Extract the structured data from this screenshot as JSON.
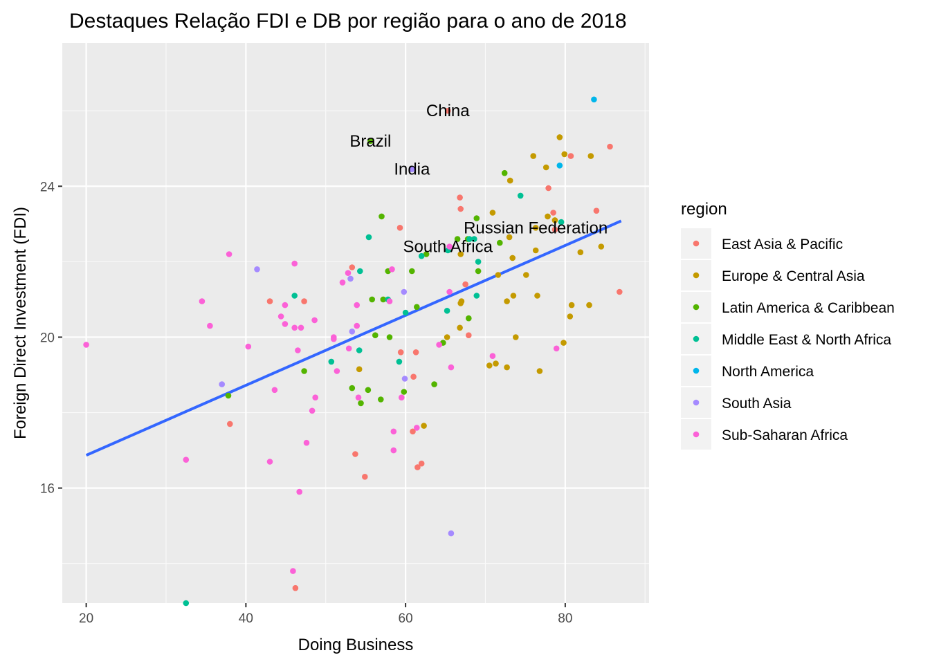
{
  "chart_data": {
    "type": "scatter",
    "title": "Destaques Relação FDI e DB por região para o ano de 2018",
    "xlabel": "Doing Business",
    "ylabel": "Foreign Direct Investment (FDI)",
    "xlim": [
      17,
      90.5
    ],
    "ylim": [
      12.95,
      27.8
    ],
    "x_ticks": [
      20,
      40,
      60,
      80
    ],
    "y_ticks": [
      16,
      20,
      24
    ],
    "x_minor": [
      30,
      50,
      70,
      90
    ],
    "y_minor": [
      14,
      18,
      22,
      26
    ],
    "grid": true,
    "panel_background": "#ebebeb",
    "legend": {
      "title": "region",
      "position": "right"
    },
    "trend_line": {
      "type": "linear fit",
      "color": "#3366ff",
      "x": [
        20,
        87
      ],
      "y": [
        16.87,
        23.08
      ]
    },
    "series": [
      {
        "name": "East Asia & Pacific",
        "color": "#f8766d",
        "points": [
          [
            65.3,
            26.0
          ],
          [
            66.8,
            23.7
          ],
          [
            66.9,
            23.4
          ],
          [
            59.3,
            22.9
          ],
          [
            53.3,
            21.85
          ],
          [
            43.0,
            20.95
          ],
          [
            47.3,
            20.95
          ],
          [
            59.4,
            19.6
          ],
          [
            61.3,
            19.6
          ],
          [
            61.0,
            18.95
          ],
          [
            60.9,
            17.5
          ],
          [
            61.5,
            16.55
          ],
          [
            62.0,
            16.65
          ],
          [
            53.7,
            16.9
          ],
          [
            54.9,
            16.3
          ],
          [
            38.0,
            17.7
          ],
          [
            46.2,
            13.35
          ],
          [
            67.5,
            21.4
          ],
          [
            67.9,
            20.05
          ],
          [
            85.6,
            25.05
          ],
          [
            80.7,
            24.8
          ],
          [
            77.9,
            23.95
          ],
          [
            78.5,
            23.3
          ],
          [
            83.9,
            23.35
          ],
          [
            78.7,
            22.85
          ],
          [
            86.8,
            21.2
          ]
        ]
      },
      {
        "name": "Europe & Central Asia",
        "color": "#c49a00",
        "points": [
          [
            79.3,
            25.3
          ],
          [
            79.9,
            24.85
          ],
          [
            83.2,
            24.8
          ],
          [
            76.0,
            24.8
          ],
          [
            77.6,
            24.5
          ],
          [
            73.1,
            24.15
          ],
          [
            70.9,
            23.3
          ],
          [
            77.8,
            23.2
          ],
          [
            78.7,
            23.1
          ],
          [
            76.3,
            22.9
          ],
          [
            73.0,
            22.65
          ],
          [
            81.9,
            22.25
          ],
          [
            84.5,
            22.4
          ],
          [
            76.3,
            22.3
          ],
          [
            73.4,
            22.1
          ],
          [
            75.1,
            21.65
          ],
          [
            71.6,
            21.65
          ],
          [
            72.7,
            20.95
          ],
          [
            73.5,
            21.1
          ],
          [
            76.5,
            21.1
          ],
          [
            67.0,
            20.95
          ],
          [
            66.9,
            20.9
          ],
          [
            80.8,
            20.85
          ],
          [
            80.6,
            20.55
          ],
          [
            83.0,
            20.85
          ],
          [
            66.8,
            20.25
          ],
          [
            65.2,
            20.0
          ],
          [
            73.8,
            20.0
          ],
          [
            79.8,
            19.85
          ],
          [
            71.3,
            19.3
          ],
          [
            70.5,
            19.25
          ],
          [
            72.7,
            19.2
          ],
          [
            76.8,
            19.1
          ],
          [
            54.2,
            19.15
          ],
          [
            62.3,
            17.65
          ],
          [
            66.9,
            22.2
          ]
        ]
      },
      {
        "name": "Latin America & Caribbean",
        "color": "#53b400",
        "points": [
          [
            55.6,
            25.2
          ],
          [
            72.4,
            24.35
          ],
          [
            57.0,
            23.2
          ],
          [
            68.9,
            23.15
          ],
          [
            66.5,
            22.6
          ],
          [
            71.8,
            22.5
          ],
          [
            67.8,
            22.6
          ],
          [
            57.8,
            21.75
          ],
          [
            60.8,
            21.75
          ],
          [
            62.6,
            22.2
          ],
          [
            69.1,
            21.75
          ],
          [
            61.4,
            20.8
          ],
          [
            67.9,
            20.5
          ],
          [
            64.7,
            19.85
          ],
          [
            57.2,
            21.0
          ],
          [
            58.0,
            20.0
          ],
          [
            56.2,
            20.05
          ],
          [
            47.3,
            19.1
          ],
          [
            53.3,
            18.65
          ],
          [
            55.3,
            18.6
          ],
          [
            56.9,
            18.35
          ],
          [
            59.8,
            18.55
          ],
          [
            63.6,
            18.75
          ],
          [
            54.4,
            18.25
          ],
          [
            37.8,
            18.45
          ],
          [
            55.8,
            21.0
          ]
        ]
      },
      {
        "name": "Middle East & North Africa",
        "color": "#00c094",
        "points": [
          [
            74.4,
            23.75
          ],
          [
            79.5,
            23.05
          ],
          [
            68.0,
            22.6
          ],
          [
            68.6,
            22.6
          ],
          [
            62.0,
            22.15
          ],
          [
            65.3,
            22.3
          ],
          [
            69.1,
            22.0
          ],
          [
            55.4,
            22.65
          ],
          [
            54.3,
            21.75
          ],
          [
            46.1,
            21.1
          ],
          [
            57.8,
            21.0
          ],
          [
            60.0,
            20.65
          ],
          [
            65.2,
            20.7
          ],
          [
            68.9,
            21.1
          ],
          [
            54.2,
            19.65
          ],
          [
            59.2,
            19.35
          ],
          [
            50.7,
            19.35
          ],
          [
            32.5,
            12.95
          ]
        ]
      },
      {
        "name": "North America",
        "color": "#00b6eb",
        "points": [
          [
            83.6,
            26.3
          ],
          [
            79.3,
            24.55
          ]
        ]
      },
      {
        "name": "South Asia",
        "color": "#a58aff",
        "points": [
          [
            60.8,
            24.45
          ],
          [
            41.4,
            21.8
          ],
          [
            53.1,
            21.55
          ],
          [
            59.8,
            21.2
          ],
          [
            53.3,
            20.15
          ],
          [
            59.9,
            18.9
          ],
          [
            37.0,
            18.75
          ],
          [
            65.7,
            14.8
          ]
        ]
      },
      {
        "name": "Sub-Saharan Africa",
        "color": "#fb61d7",
        "points": [
          [
            37.9,
            22.2
          ],
          [
            46.1,
            21.95
          ],
          [
            52.8,
            21.7
          ],
          [
            58.3,
            21.8
          ],
          [
            52.1,
            21.45
          ],
          [
            34.5,
            20.95
          ],
          [
            44.9,
            20.85
          ],
          [
            53.9,
            20.85
          ],
          [
            58.0,
            20.95
          ],
          [
            44.4,
            20.55
          ],
          [
            35.5,
            20.3
          ],
          [
            44.9,
            20.35
          ],
          [
            46.1,
            20.25
          ],
          [
            46.9,
            20.25
          ],
          [
            48.6,
            20.45
          ],
          [
            53.9,
            20.3
          ],
          [
            51.0,
            20.0
          ],
          [
            51.0,
            19.95
          ],
          [
            20.0,
            19.8
          ],
          [
            40.3,
            19.75
          ],
          [
            46.5,
            19.65
          ],
          [
            52.9,
            19.7
          ],
          [
            64.2,
            19.8
          ],
          [
            70.9,
            19.5
          ],
          [
            78.9,
            19.7
          ],
          [
            51.4,
            19.1
          ],
          [
            65.7,
            19.2
          ],
          [
            43.6,
            18.6
          ],
          [
            48.7,
            18.4
          ],
          [
            48.3,
            18.05
          ],
          [
            54.1,
            18.4
          ],
          [
            59.5,
            18.4
          ],
          [
            61.4,
            17.6
          ],
          [
            58.5,
            17.5
          ],
          [
            47.6,
            17.2
          ],
          [
            58.5,
            17.0
          ],
          [
            32.5,
            16.75
          ],
          [
            43.0,
            16.7
          ],
          [
            46.7,
            15.9
          ],
          [
            45.9,
            13.8
          ],
          [
            65.5,
            21.2
          ],
          [
            65.5,
            22.4
          ]
        ]
      }
    ],
    "annotations": [
      {
        "text": "China",
        "x": 65.3,
        "y": 26.0
      },
      {
        "text": "Brazil",
        "x": 55.6,
        "y": 25.2
      },
      {
        "text": "India",
        "x": 60.8,
        "y": 24.45
      },
      {
        "text": "Russian Federation",
        "x": 76.3,
        "y": 22.9
      },
      {
        "text": "South Africa",
        "x": 65.3,
        "y": 22.4
      }
    ]
  }
}
